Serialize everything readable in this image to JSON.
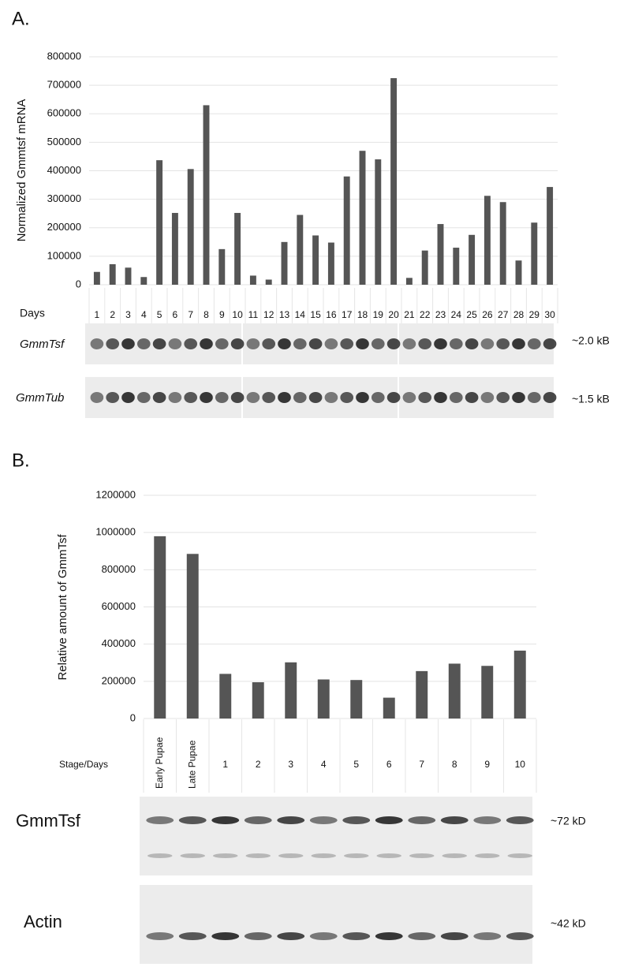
{
  "chart_data": [
    {
      "type": "bar",
      "panel_label": "A.",
      "y_label": "Normalized Gmmtsf mRNA",
      "x_label": "Days",
      "categories": [
        "1",
        "2",
        "3",
        "4",
        "5",
        "6",
        "7",
        "8",
        "9",
        "10",
        "11",
        "12",
        "13",
        "14",
        "15",
        "16",
        "17",
        "18",
        "19",
        "20",
        "21",
        "22",
        "23",
        "24",
        "25",
        "26",
        "27",
        "28",
        "29",
        "30"
      ],
      "values": [
        45000,
        72000,
        60000,
        27000,
        437000,
        252000,
        406000,
        630000,
        125000,
        252000,
        32000,
        18000,
        150000,
        245000,
        173000,
        148000,
        380000,
        470000,
        440000,
        725000,
        24000,
        120000,
        213000,
        130000,
        175000,
        312000,
        290000,
        85000,
        218000,
        343000
      ],
      "color": "#555555",
      "ylim": [
        0,
        800000
      ],
      "yticks": [
        0,
        100000,
        200000,
        300000,
        400000,
        500000,
        600000,
        700000,
        800000
      ],
      "grid": true,
      "blots": [
        {
          "label": "GmmTsf",
          "size": "~2.0 kB"
        },
        {
          "label": "GmmTub",
          "size": "~1.5 kB"
        }
      ]
    },
    {
      "type": "bar",
      "panel_label": "B.",
      "y_label": "Relative amount of GmmTsf",
      "x_label": "Stage/Days",
      "categories": [
        "Early Pupae",
        "Late Pupae",
        "1",
        "2",
        "3",
        "4",
        "5",
        "6",
        "7",
        "8",
        "9",
        "10"
      ],
      "values": [
        980000,
        885000,
        240000,
        195000,
        302000,
        210000,
        207000,
        112000,
        255000,
        295000,
        283000,
        365000
      ],
      "color": "#555555",
      "ylim": [
        0,
        1200000
      ],
      "yticks": [
        0,
        200000,
        400000,
        600000,
        800000,
        1000000,
        1200000
      ],
      "grid": true,
      "blots": [
        {
          "label": "GmmTsf",
          "size": "~72 kD"
        },
        {
          "label": "Actin",
          "size": "~42 kD"
        }
      ]
    }
  ]
}
